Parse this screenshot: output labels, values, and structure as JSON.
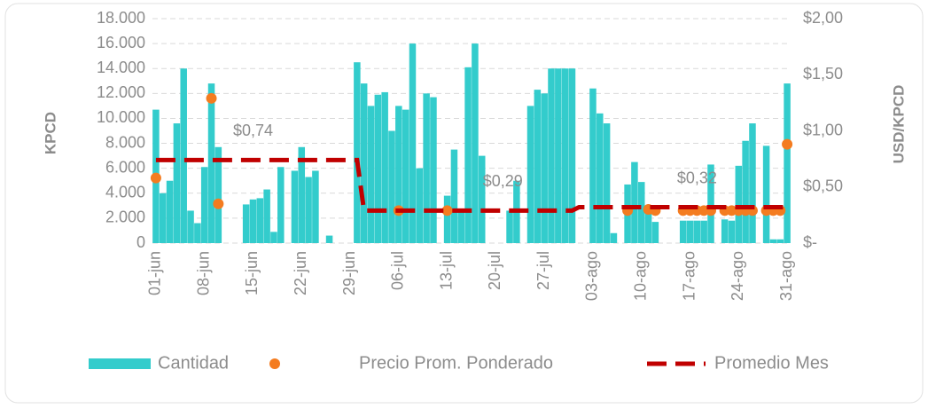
{
  "chart_data": {
    "type": "combo",
    "y_label": "KPCD",
    "y2_label": "USD/KPCD",
    "categories": [
      "01-jun",
      null,
      null,
      null,
      null,
      null,
      null,
      "08-jun",
      null,
      null,
      null,
      null,
      null,
      null,
      "15-jun",
      null,
      null,
      null,
      null,
      null,
      null,
      "22-jun",
      null,
      null,
      null,
      null,
      null,
      null,
      "29-jun",
      null,
      null,
      null,
      null,
      null,
      null,
      "06-jul",
      null,
      null,
      null,
      null,
      null,
      null,
      "13-jul",
      null,
      null,
      null,
      null,
      null,
      null,
      "20-jul",
      null,
      null,
      null,
      null,
      null,
      null,
      "27-jul",
      null,
      null,
      null,
      null,
      null,
      null,
      "03-ago",
      null,
      null,
      null,
      null,
      null,
      null,
      "10-ago",
      null,
      null,
      null,
      null,
      null,
      null,
      "17-ago",
      null,
      null,
      null,
      null,
      null,
      null,
      "24-ago",
      null,
      null,
      null,
      null,
      null,
      null,
      "31-ago"
    ],
    "series": [
      {
        "name": "Cantidad",
        "type": "bar",
        "color": "#33cccc",
        "values": [
          10700,
          4000,
          5000,
          9600,
          14000,
          2600,
          1600,
          6100,
          12800,
          7700,
          0,
          0,
          0,
          3100,
          3500,
          3600,
          4300,
          900,
          6100,
          0,
          5800,
          7700,
          5300,
          5800,
          0,
          600,
          0,
          0,
          0,
          14500,
          12800,
          11000,
          11900,
          12100,
          9000,
          11000,
          10700,
          16000,
          6000,
          12000,
          11700,
          0,
          3800,
          7500,
          2500,
          14100,
          16000,
          7000,
          0,
          0,
          0,
          2600,
          5000,
          0,
          11000,
          12300,
          12000,
          14000,
          14000,
          14000,
          14000,
          0,
          0,
          12400,
          10400,
          9600,
          800,
          0,
          4700,
          6500,
          4900,
          2700,
          1700,
          0,
          0,
          0,
          1800,
          1800,
          1800,
          1800,
          6300,
          0,
          1900,
          1800,
          6200,
          8200,
          9600,
          0,
          7800,
          300,
          300,
          12800
        ]
      },
      {
        "name": "Precio Prom. Ponderado",
        "type": "scatter",
        "axis": "y2",
        "color": "#f47c20",
        "values": [
          0.58,
          null,
          null,
          null,
          null,
          null,
          null,
          null,
          1.29,
          0.35,
          null,
          null,
          null,
          null,
          null,
          null,
          null,
          null,
          null,
          null,
          null,
          null,
          null,
          null,
          null,
          null,
          null,
          null,
          null,
          null,
          null,
          null,
          null,
          null,
          null,
          0.29,
          null,
          null,
          null,
          null,
          null,
          null,
          0.29,
          null,
          null,
          null,
          null,
          null,
          null,
          null,
          null,
          null,
          null,
          null,
          null,
          null,
          null,
          null,
          null,
          null,
          null,
          null,
          null,
          null,
          null,
          null,
          null,
          null,
          0.29,
          null,
          null,
          0.3,
          0.29,
          null,
          null,
          null,
          0.29,
          0.29,
          0.29,
          0.29,
          0.29,
          null,
          0.29,
          0.29,
          0.29,
          0.29,
          0.29,
          null,
          0.29,
          0.29,
          0.29,
          0.88
        ]
      },
      {
        "name": "Promedio Mes",
        "type": "line",
        "axis": "y2",
        "color": "#c00000",
        "values": [
          0.74,
          0.74,
          0.74,
          0.74,
          0.74,
          0.74,
          0.74,
          0.74,
          0.74,
          0.74,
          0.74,
          0.74,
          0.74,
          0.74,
          0.74,
          0.74,
          0.74,
          0.74,
          0.74,
          0.74,
          0.74,
          0.74,
          0.74,
          0.74,
          0.74,
          0.74,
          0.74,
          0.74,
          0.74,
          0.74,
          0.29,
          0.29,
          0.29,
          0.29,
          0.29,
          0.29,
          0.29,
          0.29,
          0.29,
          0.29,
          0.29,
          0.29,
          0.29,
          0.29,
          0.29,
          0.29,
          0.29,
          0.29,
          0.29,
          0.29,
          0.29,
          0.29,
          0.29,
          0.29,
          0.29,
          0.29,
          0.29,
          0.29,
          0.29,
          0.29,
          0.29,
          0.32,
          0.32,
          0.32,
          0.32,
          0.32,
          0.32,
          0.32,
          0.32,
          0.32,
          0.32,
          0.32,
          0.32,
          0.32,
          0.32,
          0.32,
          0.32,
          0.32,
          0.32,
          0.32,
          0.32,
          0.32,
          0.32,
          0.32,
          0.32,
          0.32,
          0.32,
          0.32,
          0.32,
          0.32,
          0.32,
          0.32
        ],
        "value_labels": [
          null,
          null,
          null,
          null,
          null,
          null,
          null,
          null,
          null,
          null,
          null,
          null,
          null,
          null,
          "$0,74",
          null,
          null,
          null,
          null,
          null,
          null,
          null,
          null,
          null,
          null,
          null,
          null,
          null,
          null,
          null,
          null,
          null,
          null,
          null,
          null,
          null,
          null,
          null,
          null,
          null,
          null,
          null,
          null,
          null,
          null,
          null,
          null,
          null,
          null,
          null,
          "$0,29",
          null,
          null,
          null,
          null,
          null,
          null,
          null,
          null,
          null,
          null,
          null,
          null,
          null,
          null,
          null,
          null,
          null,
          null,
          null,
          null,
          null,
          null,
          null,
          null,
          null,
          null,
          null,
          "$0,32",
          null,
          null,
          null,
          null,
          null,
          null,
          null,
          null,
          null,
          null,
          null,
          null,
          null
        ]
      }
    ],
    "ylim": [
      0,
      18000
    ],
    "yticks": [
      0,
      {
        "value": 2000,
        "label": "2.000"
      },
      {
        "value": 4000,
        "label": "4.000"
      },
      {
        "value": 6000,
        "label": "6.000"
      },
      {
        "value": 8000,
        "label": "8.000"
      },
      {
        "value": 10000,
        "label": "10.000"
      },
      {
        "value": 12000,
        "label": "12.000"
      },
      {
        "value": 14000,
        "label": "14.000"
      },
      {
        "value": 16000,
        "label": "16.000"
      },
      {
        "value": 18000,
        "label": "18.000"
      }
    ],
    "y2lim": [
      0,
      2
    ],
    "y2ticks": [
      {
        "value": 0,
        "label": "$-"
      },
      {
        "value": 0.5,
        "label": "$0,50"
      },
      {
        "value": 1,
        "label": "$1,00"
      },
      {
        "value": 1.5,
        "label": "$1,50"
      },
      {
        "value": 2,
        "label": "$2,00"
      }
    ],
    "grid": true,
    "legend": "bottom"
  }
}
